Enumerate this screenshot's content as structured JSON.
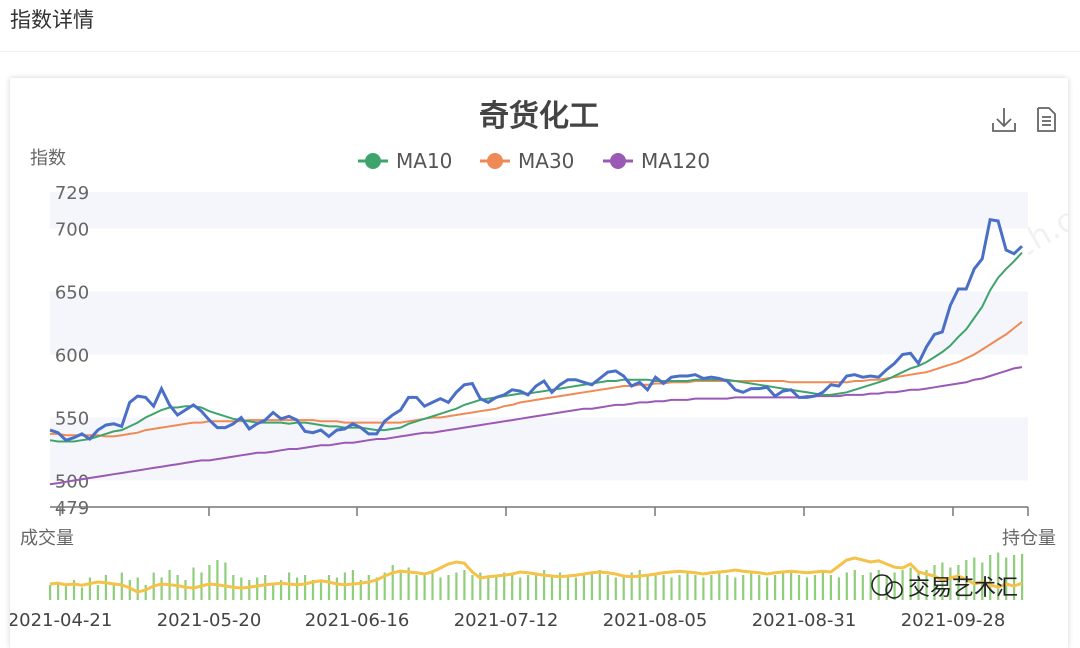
{
  "page": {
    "title": "指数详情"
  },
  "toolbar": {
    "download_icon": "download-icon",
    "data_view_icon": "document-icon"
  },
  "watermark": "奇货可查 qhkch.com",
  "stamp": "交易艺术汇",
  "colors": {
    "index": "#4a6fc7",
    "ma10": "#3fa46c",
    "ma30": "#f08a55",
    "ma120": "#9b59b6",
    "volume": "#8fce7a",
    "open_interest": "#f5c24a",
    "band": "#f4f6fb"
  },
  "chart_data": {
    "type": "line",
    "title": "奇货化工",
    "ylabel": "指数",
    "volume_label": "成交量",
    "open_interest_label": "持仓量",
    "ylim": [
      479,
      729
    ],
    "yticks": [
      479,
      500,
      550,
      600,
      650,
      700,
      729
    ],
    "xticks": [
      "2021-04-21",
      "2021-05-20",
      "2021-06-16",
      "2021-07-12",
      "2021-08-05",
      "2021-08-31",
      "2021-09-28"
    ],
    "legend": [
      "MA10",
      "MA30",
      "MA120"
    ],
    "legend_position": "top-center",
    "series": [
      {
        "name": "指数",
        "values": [
          540,
          538,
          532,
          534,
          537,
          533,
          540,
          544,
          545,
          543,
          562,
          567,
          566,
          559,
          573,
          560,
          552,
          556,
          560,
          555,
          548,
          542,
          542,
          545,
          550,
          541,
          545,
          548,
          554,
          549,
          551,
          548,
          539,
          538,
          540,
          535,
          540,
          541,
          545,
          542,
          537,
          537,
          547,
          552,
          556,
          566,
          566,
          559,
          562,
          565,
          562,
          570,
          576,
          577,
          565,
          562,
          566,
          568,
          572,
          571,
          568,
          575,
          579,
          570,
          576,
          580,
          580,
          578,
          576,
          581,
          586,
          587,
          583,
          575,
          578,
          572,
          582,
          577,
          582,
          583,
          583,
          584,
          581,
          582,
          581,
          579,
          572,
          570,
          573,
          573,
          574,
          567,
          571,
          572,
          566,
          566,
          567,
          570,
          576,
          575,
          583,
          584,
          582,
          583,
          582,
          588,
          593,
          600,
          601,
          593,
          606,
          616,
          618,
          639,
          652,
          652,
          668,
          676,
          707,
          706,
          683,
          680,
          686
        ]
      },
      {
        "name": "MA10",
        "values": [
          532,
          531,
          531,
          531,
          532,
          533,
          535,
          537,
          539,
          540,
          543,
          546,
          550,
          553,
          556,
          558,
          558,
          559,
          559,
          558,
          555,
          553,
          551,
          549,
          548,
          547,
          546,
          546,
          546,
          546,
          545,
          546,
          546,
          545,
          544,
          543,
          543,
          542,
          542,
          542,
          541,
          540,
          540,
          541,
          542,
          545,
          547,
          549,
          551,
          553,
          555,
          557,
          560,
          562,
          564,
          565,
          566,
          567,
          568,
          569,
          569,
          570,
          571,
          572,
          573,
          574,
          575,
          576,
          577,
          578,
          579,
          579,
          580,
          580,
          580,
          580,
          579,
          579,
          579,
          579,
          579,
          580,
          580,
          580,
          580,
          580,
          579,
          578,
          577,
          576,
          575,
          574,
          573,
          572,
          571,
          570,
          569,
          568,
          568,
          569,
          570,
          572,
          574,
          576,
          578,
          580,
          583,
          586,
          589,
          591,
          594,
          598,
          602,
          607,
          614,
          620,
          629,
          638,
          651,
          661,
          668,
          674,
          681
        ]
      },
      {
        "name": "MA30",
        "values": [
          537,
          537,
          536,
          536,
          536,
          536,
          536,
          535,
          535,
          536,
          537,
          538,
          540,
          541,
          542,
          543,
          544,
          545,
          546,
          546,
          547,
          547,
          547,
          547,
          547,
          548,
          548,
          548,
          548,
          548,
          548,
          548,
          548,
          548,
          547,
          547,
          547,
          546,
          546,
          546,
          546,
          546,
          546,
          546,
          546,
          547,
          548,
          549,
          550,
          550,
          551,
          552,
          553,
          554,
          555,
          556,
          557,
          559,
          560,
          562,
          563,
          564,
          565,
          566,
          567,
          568,
          569,
          570,
          571,
          572,
          573,
          574,
          575,
          575,
          576,
          576,
          577,
          577,
          578,
          578,
          578,
          579,
          579,
          579,
          579,
          579,
          579,
          579,
          579,
          579,
          579,
          579,
          579,
          578,
          578,
          578,
          578,
          578,
          578,
          578,
          578,
          579,
          579,
          580,
          580,
          581,
          582,
          583,
          584,
          585,
          586,
          588,
          590,
          592,
          594,
          597,
          600,
          604,
          608,
          612,
          616,
          621,
          626
        ]
      },
      {
        "name": "MA120",
        "values": [
          497,
          498,
          499,
          500,
          501,
          502,
          503,
          504,
          505,
          506,
          507,
          508,
          509,
          510,
          511,
          512,
          513,
          514,
          515,
          516,
          516,
          517,
          518,
          519,
          520,
          521,
          522,
          522,
          523,
          524,
          525,
          525,
          526,
          527,
          528,
          528,
          529,
          530,
          530,
          531,
          532,
          533,
          533,
          534,
          535,
          536,
          537,
          538,
          538,
          539,
          540,
          541,
          542,
          543,
          544,
          545,
          546,
          547,
          548,
          549,
          550,
          551,
          552,
          553,
          554,
          555,
          556,
          557,
          557,
          558,
          559,
          560,
          560,
          561,
          562,
          562,
          563,
          563,
          564,
          564,
          564,
          565,
          565,
          565,
          565,
          565,
          566,
          566,
          566,
          566,
          566,
          566,
          566,
          566,
          566,
          567,
          567,
          567,
          567,
          567,
          568,
          568,
          568,
          569,
          569,
          570,
          570,
          571,
          572,
          572,
          573,
          574,
          575,
          576,
          577,
          578,
          580,
          581,
          583,
          585,
          587,
          589,
          590
        ]
      }
    ],
    "volume": {
      "name": "成交量",
      "values": [
        0.3,
        0.35,
        0.28,
        0.4,
        0.25,
        0.45,
        0.3,
        0.5,
        0.35,
        0.55,
        0.4,
        0.45,
        0.3,
        0.55,
        0.45,
        0.6,
        0.5,
        0.4,
        0.65,
        0.55,
        0.7,
        0.8,
        0.75,
        0.5,
        0.45,
        0.4,
        0.45,
        0.5,
        0.35,
        0.4,
        0.55,
        0.45,
        0.5,
        0.4,
        0.35,
        0.5,
        0.45,
        0.55,
        0.6,
        0.4,
        0.5,
        0.45,
        0.55,
        0.7,
        0.6,
        0.65,
        0.5,
        0.55,
        0.6,
        0.45,
        0.5,
        0.55,
        0.6,
        0.5,
        0.55,
        0.45,
        0.5,
        0.55,
        0.5,
        0.45,
        0.5,
        0.55,
        0.6,
        0.5,
        0.55,
        0.5,
        0.45,
        0.5,
        0.55,
        0.6,
        0.5,
        0.45,
        0.5,
        0.55,
        0.6,
        0.5,
        0.55,
        0.5,
        0.45,
        0.5,
        0.55,
        0.5,
        0.45,
        0.5,
        0.55,
        0.5,
        0.45,
        0.5,
        0.55,
        0.5,
        0.45,
        0.5,
        0.55,
        0.6,
        0.5,
        0.45,
        0.5,
        0.55,
        0.5,
        0.45,
        0.55,
        0.6,
        0.5,
        0.55,
        0.6,
        0.5,
        0.55,
        0.6,
        0.65,
        0.55,
        0.6,
        0.7,
        0.75,
        0.65,
        0.7,
        0.8,
        0.85,
        0.75,
        0.9,
        0.95,
        0.85,
        0.9,
        0.92
      ]
    },
    "open_interest": {
      "name": "持仓量",
      "values": [
        0.3,
        0.32,
        0.28,
        0.3,
        0.27,
        0.31,
        0.35,
        0.33,
        0.3,
        0.28,
        0.2,
        0.1,
        0.15,
        0.25,
        0.3,
        0.28,
        0.26,
        0.22,
        0.2,
        0.25,
        0.3,
        0.28,
        0.25,
        0.22,
        0.2,
        0.22,
        0.25,
        0.28,
        0.3,
        0.32,
        0.3,
        0.28,
        0.3,
        0.35,
        0.38,
        0.35,
        0.3,
        0.28,
        0.3,
        0.32,
        0.35,
        0.4,
        0.5,
        0.58,
        0.62,
        0.6,
        0.58,
        0.55,
        0.6,
        0.7,
        0.8,
        0.85,
        0.82,
        0.6,
        0.45,
        0.48,
        0.5,
        0.52,
        0.55,
        0.6,
        0.58,
        0.55,
        0.52,
        0.5,
        0.48,
        0.5,
        0.52,
        0.55,
        0.58,
        0.6,
        0.58,
        0.55,
        0.5,
        0.48,
        0.5,
        0.52,
        0.55,
        0.58,
        0.6,
        0.62,
        0.6,
        0.58,
        0.55,
        0.58,
        0.6,
        0.62,
        0.65,
        0.62,
        0.6,
        0.58,
        0.55,
        0.58,
        0.6,
        0.62,
        0.6,
        0.58,
        0.6,
        0.62,
        0.6,
        0.75,
        0.9,
        0.95,
        0.9,
        0.85,
        0.88,
        0.8,
        0.72,
        0.7,
        0.8,
        0.6,
        0.55,
        0.5,
        0.4,
        0.45,
        0.5,
        0.42,
        0.3,
        0.35,
        0.28,
        0.22,
        0.3,
        0.25,
        0.32
      ]
    }
  }
}
